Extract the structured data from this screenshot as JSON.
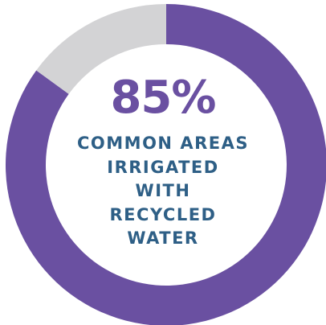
{
  "chart_data": {
    "type": "pie",
    "style": "donut",
    "slices": [
      {
        "label": "Common areas irrigated with recycled water",
        "value": 85,
        "color": "#6a50a1"
      },
      {
        "label": "",
        "value": 15,
        "color": "#d3d3d5"
      }
    ],
    "center_value": "85%",
    "center_caption": [
      "COMMON AREAS",
      "IRRIGATED",
      "WITH",
      "RECYCLED",
      "WATER"
    ]
  },
  "colors": {
    "accent": "#6a50a1",
    "remainder": "#d3d3d5",
    "caption_text": "#2e5f86",
    "background": "#ffffff"
  }
}
